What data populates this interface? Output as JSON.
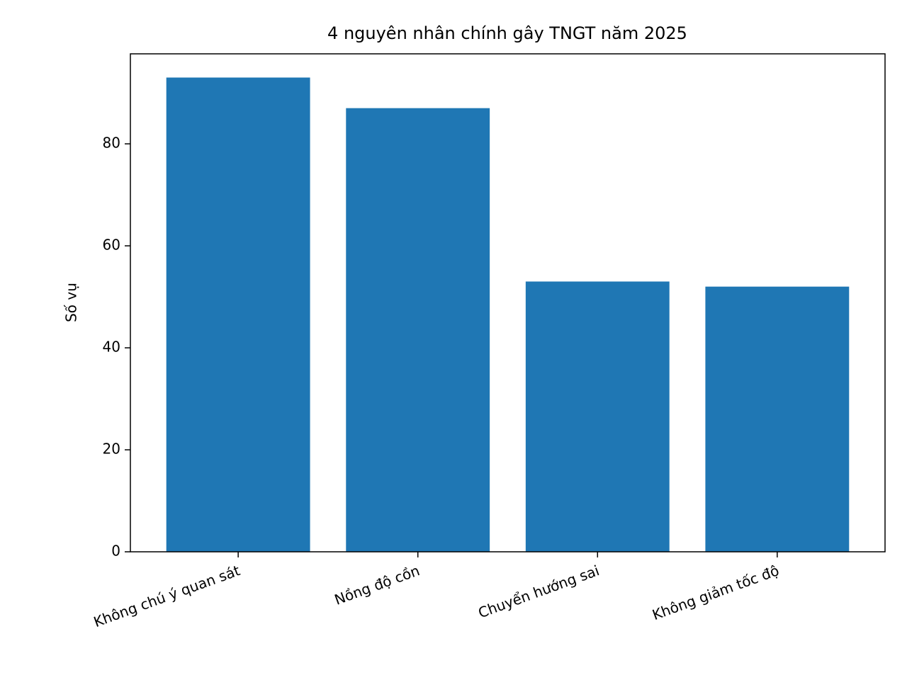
{
  "chart_data": {
    "type": "bar",
    "title": "4 nguyên nhân chính gây TNGT năm 2025",
    "ylabel": "Số vụ",
    "categories": [
      "Không chú ý quan sát",
      "Nồng độ cồn",
      "Chuyển hướng sai",
      "Không giảm tốc độ"
    ],
    "values": [
      93,
      87,
      53,
      52
    ],
    "color": "#1f77b4",
    "ylim": [
      0,
      97.65
    ],
    "yticks": [
      0,
      20,
      40,
      60,
      80
    ],
    "grid": false
  }
}
